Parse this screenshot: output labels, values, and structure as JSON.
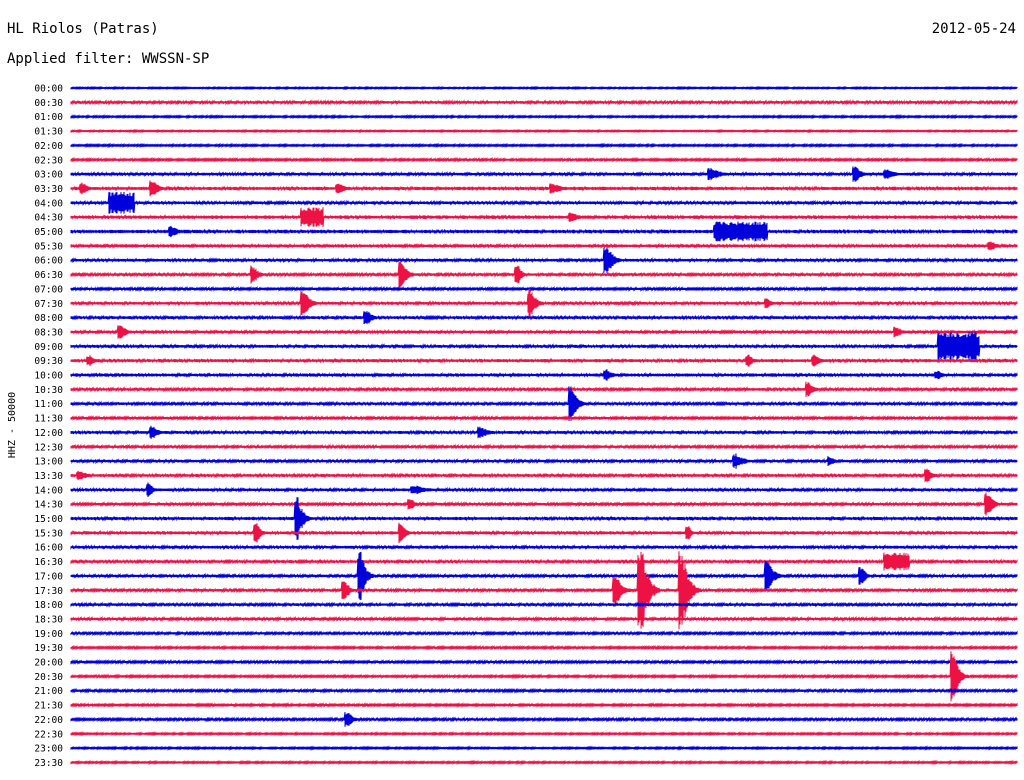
{
  "header": {
    "station": "HL Riolos (Patras)",
    "date": "2012-05-24",
    "filter": "Applied filter: WWSSN-SP"
  },
  "chart_data": {
    "type": "line",
    "ylabel": "HHZ - 50000",
    "colors": [
      "#0000dd",
      "#ee1144"
    ],
    "rows": [
      "00:00",
      "00:30",
      "01:00",
      "01:30",
      "02:00",
      "02:30",
      "03:00",
      "03:30",
      "04:00",
      "04:30",
      "05:00",
      "05:30",
      "06:00",
      "06:30",
      "07:00",
      "07:30",
      "08:00",
      "08:30",
      "09:00",
      "09:30",
      "10:00",
      "10:30",
      "11:00",
      "11:30",
      "12:00",
      "12:30",
      "13:00",
      "13:30",
      "14:00",
      "14:30",
      "15:00",
      "15:30",
      "16:00",
      "16:30",
      "17:00",
      "17:30",
      "18:00",
      "18:30",
      "19:00",
      "19:30",
      "20:00",
      "20:30",
      "21:00",
      "21:30",
      "22:00",
      "22:30",
      "23:00",
      "23:30"
    ],
    "x_range_minutes": [
      0,
      30
    ],
    "noise_level": [
      0.5,
      0.9,
      0.6,
      0.5,
      0.6,
      0.7,
      1.0,
      1.2,
      1.0,
      1.2,
      1.2,
      1.1,
      1.0,
      0.9,
      0.8,
      1.0,
      1.0,
      1.0,
      1.0,
      1.1,
      1.1,
      0.9,
      0.9,
      0.8,
      1.0,
      0.8,
      0.9,
      1.0,
      1.0,
      0.9,
      1.1,
      1.1,
      1.0,
      1.0,
      0.9,
      0.9,
      0.9,
      0.9,
      0.8,
      0.7,
      0.8,
      0.7,
      0.8,
      0.7,
      0.8,
      0.6,
      0.6,
      0.6
    ],
    "events": [
      {
        "row": "03:00",
        "minute": 20.3,
        "amplitude": 7,
        "duration": 1.0
      },
      {
        "row": "03:00",
        "minute": 24.9,
        "amplitude": 8,
        "duration": 0.6
      },
      {
        "row": "03:00",
        "minute": 25.9,
        "amplitude": 5,
        "duration": 0.8
      },
      {
        "row": "03:30",
        "minute": 0.4,
        "amplitude": 6,
        "duration": 0.5
      },
      {
        "row": "03:30",
        "minute": 2.6,
        "amplitude": 9,
        "duration": 0.6
      },
      {
        "row": "03:30",
        "minute": 8.5,
        "amplitude": 6,
        "duration": 0.6
      },
      {
        "row": "03:30",
        "minute": 15.3,
        "amplitude": 5,
        "duration": 1.2
      },
      {
        "row": "04:00",
        "minute": 1.3,
        "amplitude": 11,
        "duration": 0.7,
        "block": true
      },
      {
        "row": "04:30",
        "minute": 7.4,
        "amplitude": 10,
        "duration": 0.6,
        "block": true
      },
      {
        "row": "04:30",
        "minute": 15.9,
        "amplitude": 5,
        "duration": 0.8
      },
      {
        "row": "05:00",
        "minute": 3.2,
        "amplitude": 6,
        "duration": 0.7
      },
      {
        "row": "05:00",
        "minute": 20.5,
        "amplitude": 10,
        "duration": 1.6,
        "block": true
      },
      {
        "row": "05:30",
        "minute": 29.2,
        "amplitude": 5,
        "duration": 0.6
      },
      {
        "row": "06:00",
        "minute": 17.0,
        "amplitude": 16,
        "duration": 0.6
      },
      {
        "row": "06:30",
        "minute": 5.8,
        "amplitude": 9,
        "duration": 0.5
      },
      {
        "row": "06:30",
        "minute": 10.5,
        "amplitude": 13,
        "duration": 0.6
      },
      {
        "row": "06:30",
        "minute": 14.2,
        "amplitude": 9,
        "duration": 0.4
      },
      {
        "row": "07:30",
        "minute": 7.4,
        "amplitude": 13,
        "duration": 0.6
      },
      {
        "row": "07:30",
        "minute": 14.6,
        "amplitude": 15,
        "duration": 0.5
      },
      {
        "row": "07:30",
        "minute": 22.1,
        "amplitude": 6,
        "duration": 0.4
      },
      {
        "row": "08:00",
        "minute": 9.4,
        "amplitude": 8,
        "duration": 0.5
      },
      {
        "row": "08:30",
        "minute": 1.6,
        "amplitude": 7,
        "duration": 0.6
      },
      {
        "row": "08:30",
        "minute": 26.2,
        "amplitude": 6,
        "duration": 0.5
      },
      {
        "row": "09:00",
        "minute": 27.6,
        "amplitude": 15,
        "duration": 1.2,
        "block": true
      },
      {
        "row": "09:30",
        "minute": 0.6,
        "amplitude": 6,
        "duration": 0.5
      },
      {
        "row": "09:30",
        "minute": 21.5,
        "amplitude": 6,
        "duration": 0.5
      },
      {
        "row": "09:30",
        "minute": 23.6,
        "amplitude": 6,
        "duration": 0.6
      },
      {
        "row": "10:00",
        "minute": 17.0,
        "amplitude": 6,
        "duration": 0.6
      },
      {
        "row": "10:00",
        "minute": 27.5,
        "amplitude": 5,
        "duration": 0.5
      },
      {
        "row": "10:30",
        "minute": 23.4,
        "amplitude": 8,
        "duration": 0.5
      },
      {
        "row": "11:00",
        "minute": 15.9,
        "amplitude": 18,
        "duration": 0.5
      },
      {
        "row": "12:00",
        "minute": 2.6,
        "amplitude": 7,
        "duration": 0.6
      },
      {
        "row": "12:00",
        "minute": 13.0,
        "amplitude": 6,
        "duration": 0.8
      },
      {
        "row": "13:00",
        "minute": 21.1,
        "amplitude": 8,
        "duration": 0.8
      },
      {
        "row": "13:00",
        "minute": 24.1,
        "amplitude": 5,
        "duration": 0.4
      },
      {
        "row": "13:30",
        "minute": 0.3,
        "amplitude": 5,
        "duration": 0.8
      },
      {
        "row": "13:30",
        "minute": 27.2,
        "amplitude": 7,
        "duration": 0.4
      },
      {
        "row": "14:00",
        "minute": 2.5,
        "amplitude": 8,
        "duration": 0.4
      },
      {
        "row": "14:00",
        "minute": 10.9,
        "amplitude": 5,
        "duration": 1.4
      },
      {
        "row": "14:30",
        "minute": 10.8,
        "amplitude": 6,
        "duration": 0.4
      },
      {
        "row": "14:30",
        "minute": 29.1,
        "amplitude": 12,
        "duration": 0.5
      },
      {
        "row": "15:00",
        "minute": 7.2,
        "amplitude": 22,
        "duration": 0.5
      },
      {
        "row": "15:30",
        "minute": 5.9,
        "amplitude": 11,
        "duration": 0.4
      },
      {
        "row": "15:30",
        "minute": 10.5,
        "amplitude": 11,
        "duration": 0.4
      },
      {
        "row": "15:30",
        "minute": 19.6,
        "amplitude": 7,
        "duration": 0.3
      },
      {
        "row": "16:30",
        "minute": 25.9,
        "amplitude": 9,
        "duration": 0.7,
        "block": true
      },
      {
        "row": "17:00",
        "minute": 9.2,
        "amplitude": 24,
        "duration": 0.5
      },
      {
        "row": "17:00",
        "minute": 22.1,
        "amplitude": 17,
        "duration": 0.6
      },
      {
        "row": "17:00",
        "minute": 25.1,
        "amplitude": 9,
        "duration": 0.4
      },
      {
        "row": "17:30",
        "minute": 8.7,
        "amplitude": 12,
        "duration": 0.4
      },
      {
        "row": "17:30",
        "minute": 17.3,
        "amplitude": 16,
        "duration": 0.6
      },
      {
        "row": "17:30",
        "minute": 18.1,
        "amplitude": 48,
        "duration": 0.6
      },
      {
        "row": "17:30",
        "minute": 19.4,
        "amplitude": 40,
        "duration": 0.6
      },
      {
        "row": "20:30",
        "minute": 28.0,
        "amplitude": 26,
        "duration": 0.5
      },
      {
        "row": "22:00",
        "minute": 8.8,
        "amplitude": 8,
        "duration": 0.5
      }
    ]
  }
}
